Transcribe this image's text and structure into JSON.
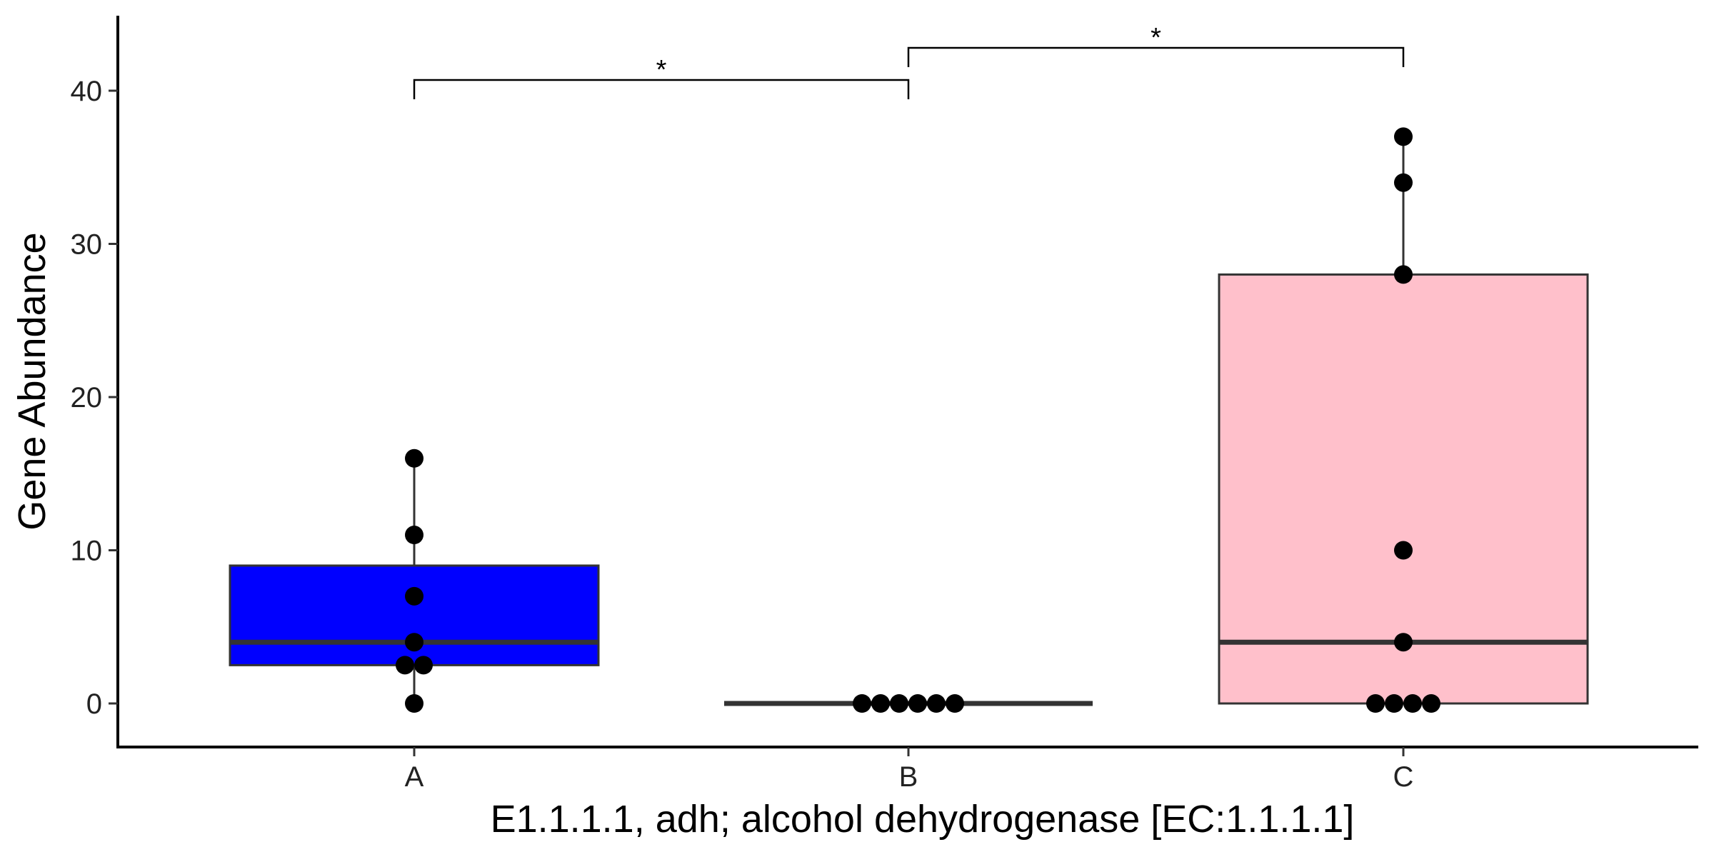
{
  "chart_data": {
    "type": "box",
    "title": "",
    "xlabel": "E1.1.1.1, adh; alcohol dehydrogenase [EC:1.1.1.1]",
    "ylabel": "Gene Abundance",
    "ylim": [
      -3,
      45
    ],
    "y_ticks": [
      "0",
      "10",
      "20",
      "30",
      "40"
    ],
    "grid": false,
    "categories": [
      "A",
      "B",
      "C"
    ],
    "colors": {
      "A": "#0000FF",
      "B": "#FFFFFF",
      "C": "#FFC0CB",
      "outline": "#333333",
      "points": "#000000"
    },
    "boxes": [
      {
        "group": "A",
        "min": 0,
        "q1": 2.5,
        "median": 4,
        "q3": 9,
        "max": 16
      },
      {
        "group": "B",
        "min": 0,
        "q1": 0,
        "median": 0,
        "q3": 0,
        "max": 0
      },
      {
        "group": "C",
        "min": 0,
        "q1": 0,
        "median": 4,
        "q3": 28,
        "max": 37
      }
    ],
    "points": {
      "A": [
        0,
        2.5,
        2.5,
        4,
        7,
        11,
        16
      ],
      "B": [
        0,
        0,
        0,
        0,
        0,
        0
      ],
      "C": [
        0,
        0,
        0,
        0,
        4,
        10,
        28,
        34,
        37
      ]
    },
    "significance": [
      {
        "from": "A",
        "to": "B",
        "y": 40.7,
        "label": "*"
      },
      {
        "from": "B",
        "to": "C",
        "y": 42.8,
        "label": "*"
      }
    ]
  }
}
